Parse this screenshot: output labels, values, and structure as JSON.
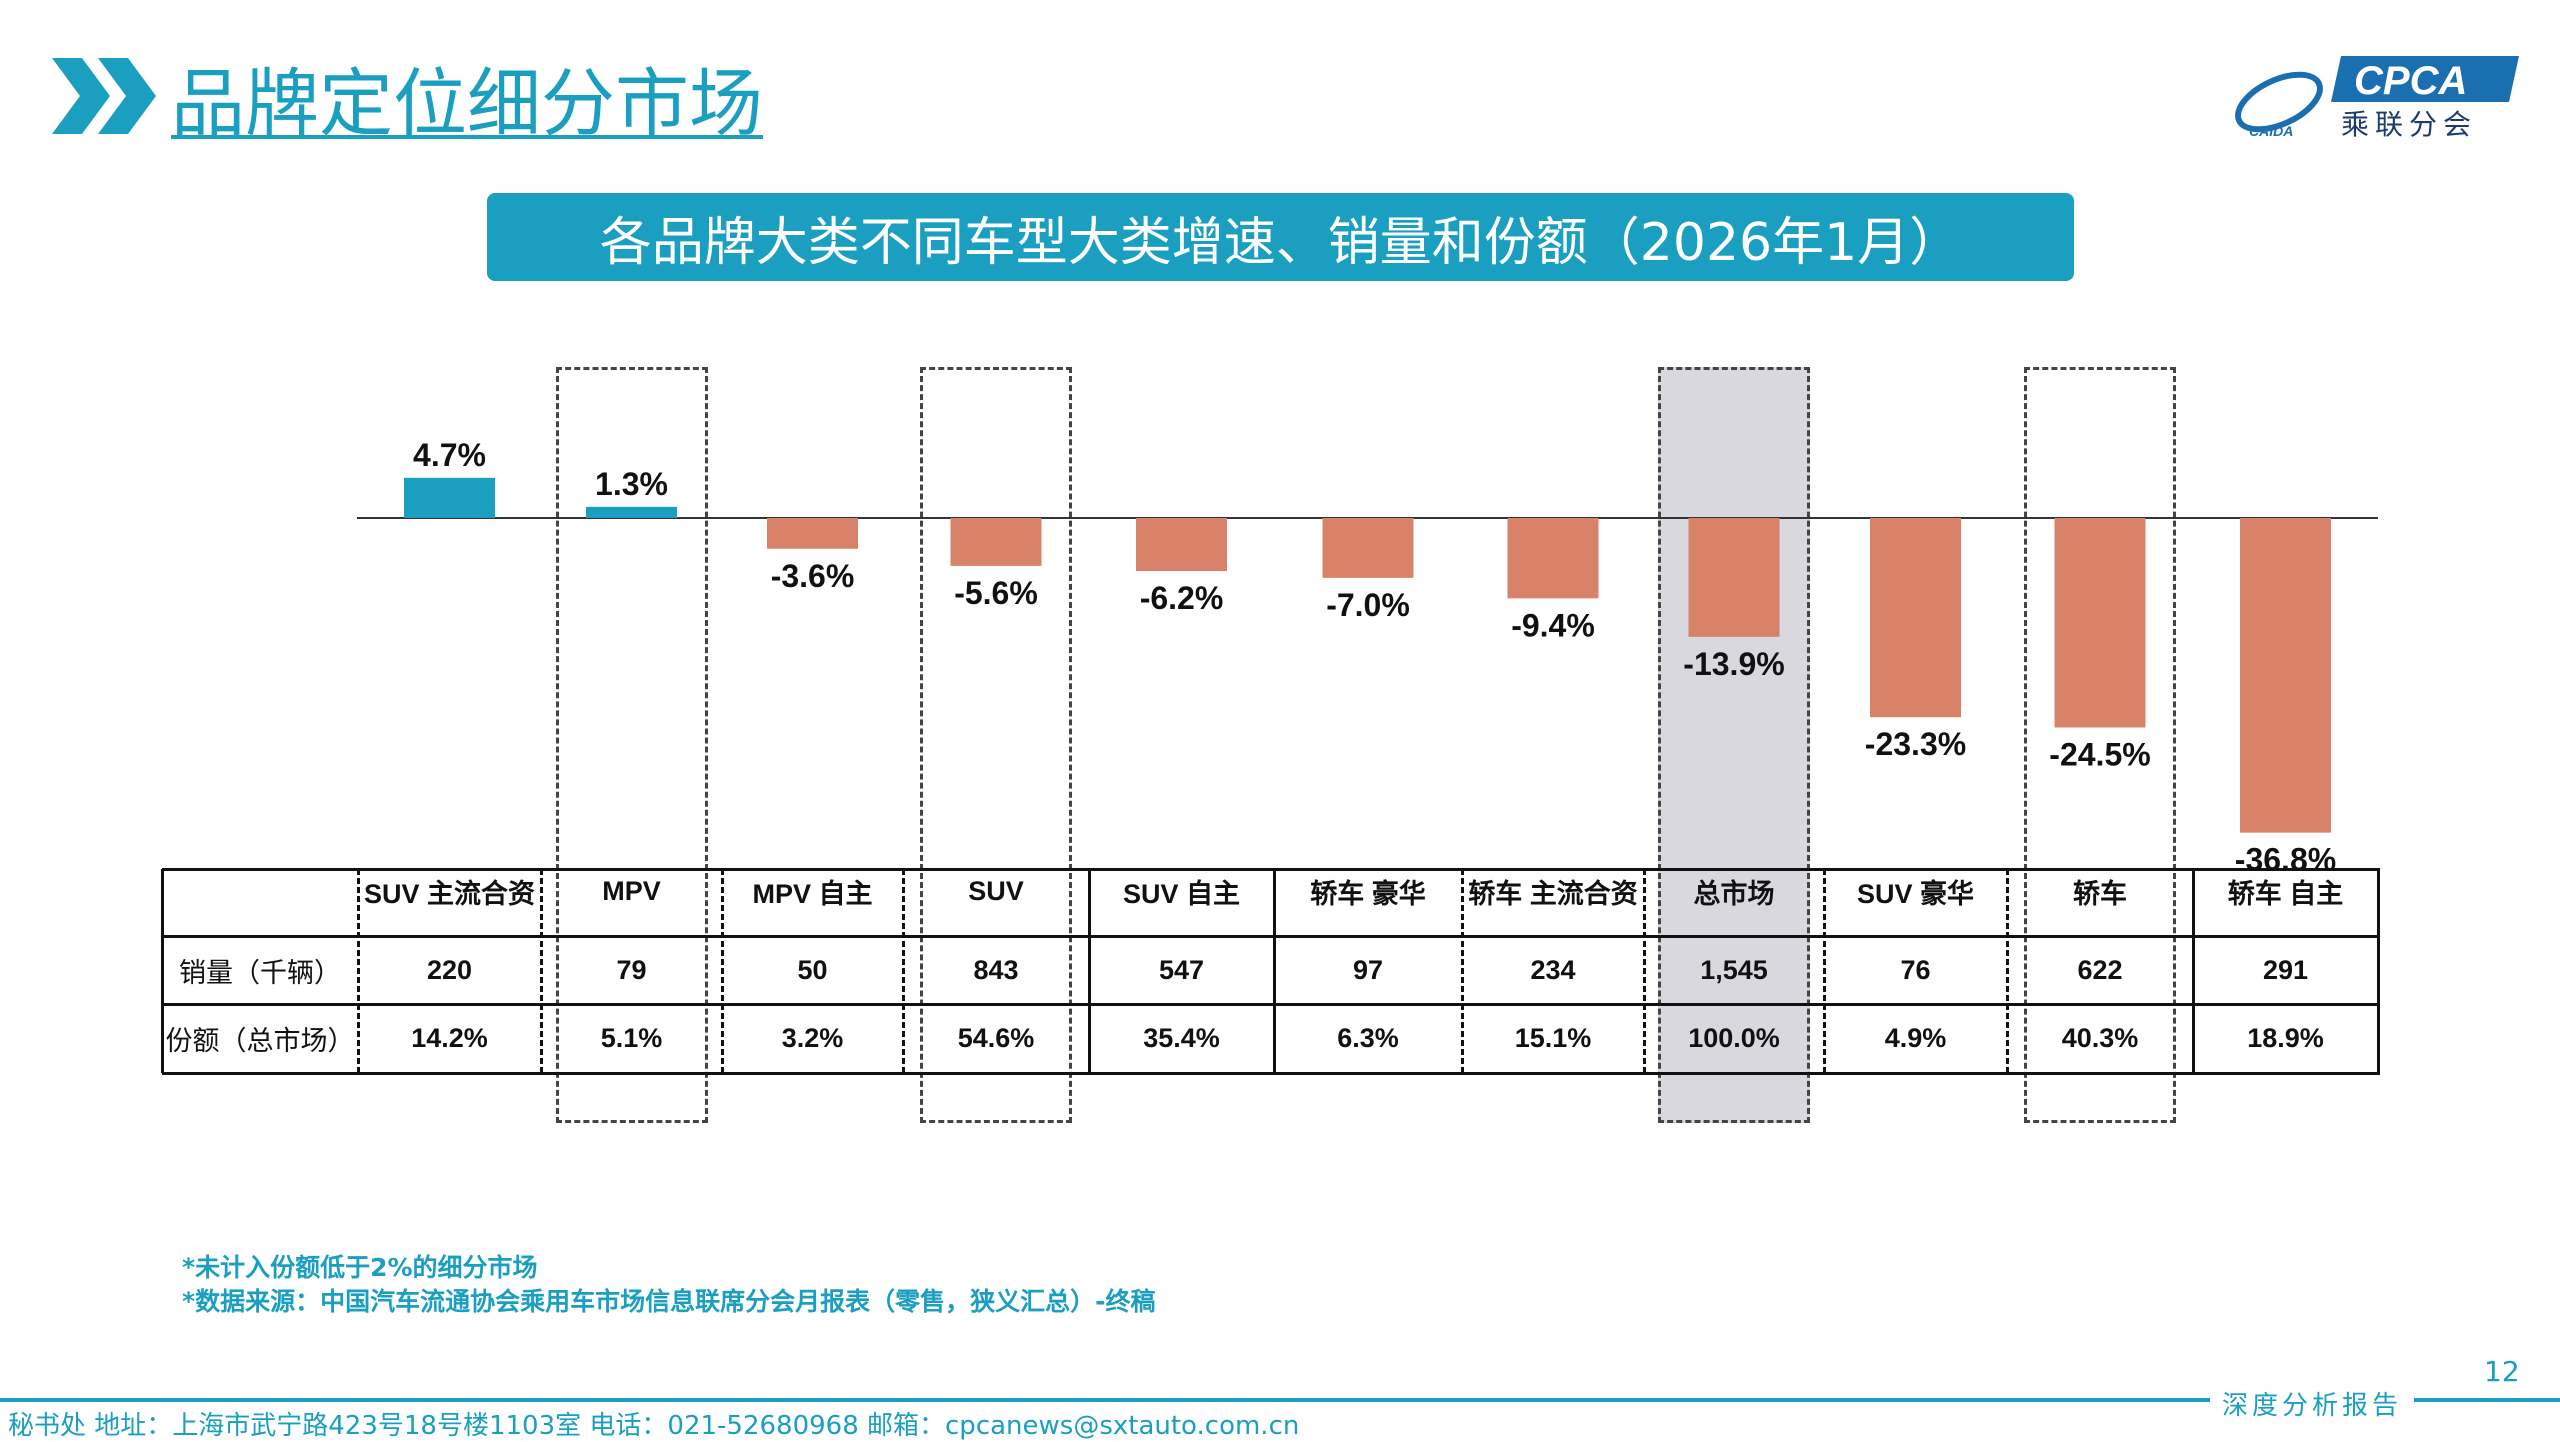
{
  "header": {
    "title": "品牌定位细分市场",
    "logo_text": "CPCA",
    "logo_subtext": "乘联分会",
    "logo_mark": "CAIDA"
  },
  "banner": {
    "title": "各品牌大类不同车型大类增速、销量和份额（2026年1月）"
  },
  "colors": {
    "accent": "#1a9fc1",
    "positive": "#1a9fc1",
    "negative": "#d9826a",
    "highlight": "#d8d8de"
  },
  "chart_data": {
    "type": "bar",
    "categories": [
      "SUV 主流合资",
      "MPV",
      "MPV 自主",
      "SUV",
      "SUV 自主",
      "轿车 豪华",
      "轿车 主流合资",
      "总市场",
      "SUV 豪华",
      "轿车",
      "轿车 自主"
    ],
    "values": [
      4.7,
      1.3,
      -3.6,
      -5.6,
      -6.2,
      -7.0,
      -9.4,
      -13.9,
      -23.3,
      -24.5,
      -36.8
    ],
    "data_labels": [
      "4.7%",
      "1.3%",
      "-3.6%",
      "-5.6%",
      "-6.2%",
      "-7.0%",
      "-9.4%",
      "-13.9%",
      "-23.3%",
      "-24.5%",
      "-36.8%"
    ],
    "unit": "%",
    "dashed_highlight": [
      "MPV",
      "SUV",
      "总市场",
      "轿车"
    ],
    "shaded_highlight": [
      "总市场"
    ],
    "grid": false,
    "table": {
      "rows": [
        {
          "label": "销量（千辆）",
          "values": [
            "220",
            "79",
            "50",
            "843",
            "547",
            "97",
            "234",
            "1,545",
            "76",
            "622",
            "291"
          ]
        },
        {
          "label": "份额（总市场）",
          "values": [
            "14.2%",
            "5.1%",
            "3.2%",
            "54.6%",
            "35.4%",
            "6.3%",
            "15.1%",
            "100.0%",
            "4.9%",
            "40.3%",
            "18.9%"
          ]
        }
      ]
    }
  },
  "notes": [
    "*未计入份额低于2%的细分市场",
    "*数据来源：中国汽车流通协会乘用车市场信息联席分会月报表（零售，狭义汇总）-终稿"
  ],
  "footer": {
    "contact": "秘书处  地址：上海市武宁路423号18号楼1103室  电话：021-52680968  邮箱：cpcanews@sxtauto.com.cn",
    "report_tag": "深度分析报告",
    "page_number": "12"
  }
}
